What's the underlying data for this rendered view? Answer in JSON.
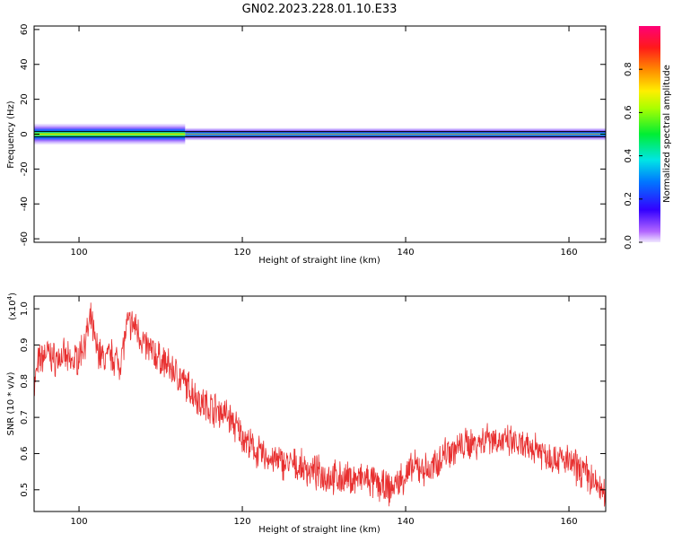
{
  "title": "GN02.2023.228.01.10.E33",
  "chart_data": [
    {
      "type": "heatmap",
      "xlabel": "Height of straight line (km)",
      "ylabel": "Frequency (Hz)",
      "xlim": [
        94.5,
        164.5
      ],
      "ylim": [
        -62,
        62
      ],
      "xticks": [
        100,
        120,
        140,
        160
      ],
      "yticks": [
        -60,
        -40,
        -20,
        0,
        20,
        40,
        60
      ],
      "band": {
        "center_hz": 0,
        "core_halfwidth_hz": 1.5,
        "diffuse_segments": [
          {
            "x": [
              94.5,
              113
            ],
            "halfwidth_hz": 6,
            "peak_amplitude": 0.8
          },
          {
            "x": [
              113,
              164.5
            ],
            "halfwidth_hz": 3.5,
            "peak_amplitude": 0.95
          }
        ]
      },
      "colorbar": {
        "label": "Normalized spectral amplitude",
        "range": [
          0,
          1
        ],
        "ticks": [
          0.0,
          0.2,
          0.4,
          0.6,
          0.8
        ]
      }
    },
    {
      "type": "line",
      "xlabel": "Height of straight line (km)",
      "ylabel": "SNR (10 * v/v)",
      "yscale_note": "(x10",
      "yscale_exp": "4",
      "xlim": [
        94.5,
        164.5
      ],
      "ylim": [
        0.44,
        1.035
      ],
      "xticks": [
        100,
        120,
        140,
        160
      ],
      "yticks": [
        0.5,
        0.6,
        0.7,
        0.8,
        0.9,
        1.0
      ],
      "color": "#e83030",
      "series": [
        {
          "x": [
            94.5,
            95,
            96,
            97,
            98,
            99,
            100,
            101,
            101.5,
            102,
            103,
            104,
            105,
            106,
            107,
            108,
            109,
            110,
            111,
            112,
            113,
            114,
            115,
            116,
            117,
            118,
            119,
            120,
            121,
            122,
            123,
            124,
            125,
            126,
            128,
            130,
            132,
            134,
            135,
            136,
            137,
            138,
            139,
            140,
            141,
            142,
            143,
            144,
            145,
            146,
            147,
            148,
            149,
            150,
            151,
            152,
            153,
            154,
            155,
            156,
            157,
            158,
            159,
            160,
            161,
            162,
            163,
            164,
            164.5
          ],
          "values": [
            0.78,
            0.85,
            0.88,
            0.86,
            0.87,
            0.85,
            0.87,
            0.93,
            0.97,
            0.9,
            0.86,
            0.87,
            0.85,
            0.96,
            0.95,
            0.9,
            0.88,
            0.86,
            0.84,
            0.82,
            0.79,
            0.77,
            0.74,
            0.73,
            0.72,
            0.71,
            0.68,
            0.65,
            0.62,
            0.6,
            0.59,
            0.58,
            0.575,
            0.57,
            0.555,
            0.54,
            0.53,
            0.53,
            0.53,
            0.52,
            0.51,
            0.5,
            0.52,
            0.54,
            0.56,
            0.56,
            0.55,
            0.58,
            0.61,
            0.61,
            0.62,
            0.63,
            0.63,
            0.65,
            0.64,
            0.63,
            0.63,
            0.62,
            0.61,
            0.62,
            0.6,
            0.59,
            0.585,
            0.575,
            0.56,
            0.55,
            0.52,
            0.5,
            0.47
          ]
        }
      ]
    }
  ]
}
